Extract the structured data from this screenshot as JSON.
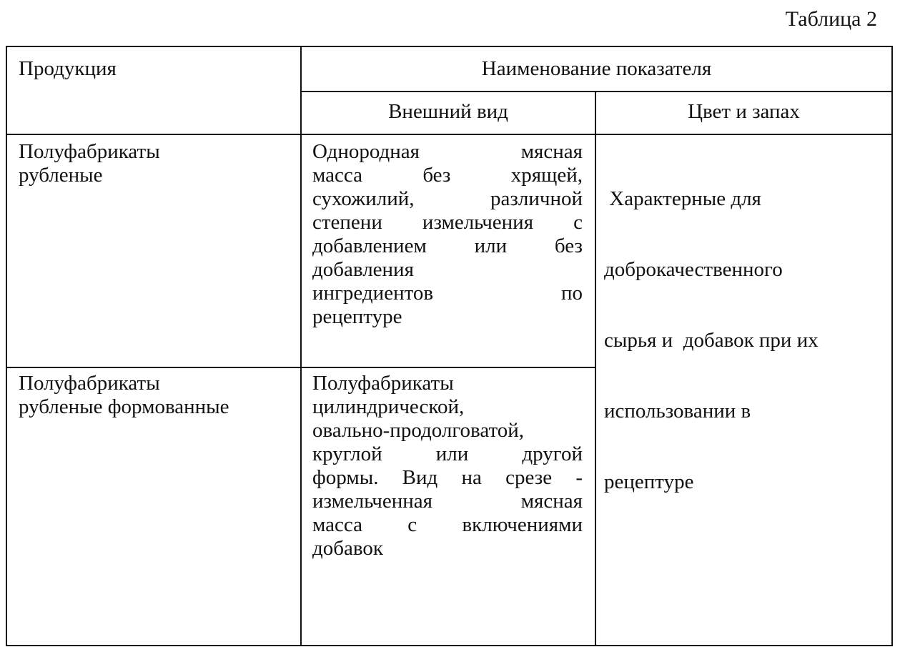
{
  "table_title": "Таблица 2",
  "headers": {
    "product": "Продукция",
    "indicator": "Наименование показателя",
    "appearance": "Внешний вид",
    "color_smell": "Цвет и запах"
  },
  "rows": [
    {
      "product": [
        "Полуфабрикаты",
        "рубленые"
      ],
      "appearance": [
        "Однородная мясная",
        "масса без хрящей,",
        "сухожилий, различной",
        "степени измельчения с",
        "добавлением или без",
        "добавления",
        "ингредиентов по",
        "рецептуре"
      ]
    },
    {
      "product": [
        "Полуфабрикаты",
        "рубленые формованные"
      ],
      "appearance": [
        "Полуфабрикаты",
        "цилиндрической,",
        "овально-продолговатой,",
        "круглой или другой",
        "формы. Вид на срезе -",
        "измельченная мясная",
        "масса с включениями",
        "добавок"
      ]
    }
  ],
  "color_smell_shared": [
    " Характерные для",
    "доброкачественного",
    "сырья и  добавок при их",
    "использовании в",
    "рецептуре"
  ]
}
